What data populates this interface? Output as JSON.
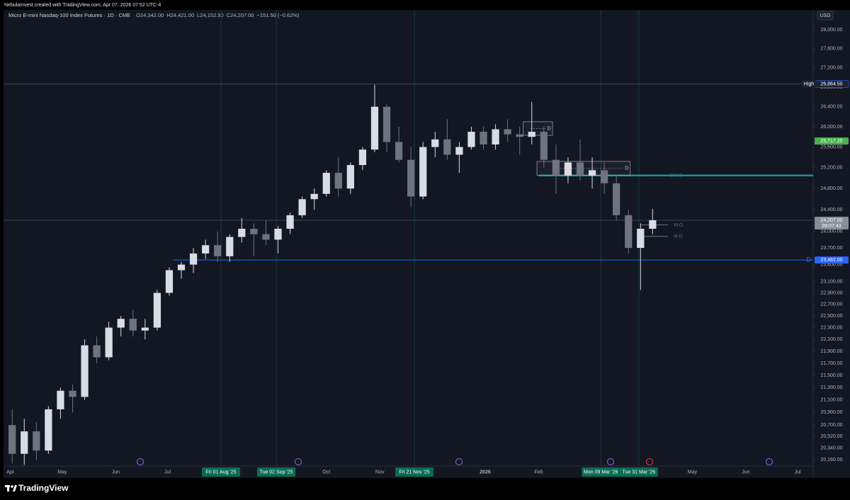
{
  "chart_data": {
    "type": "candlestick",
    "attribution": "NebulaInvest created with TradingView.com, Apr 07, 2026 07:52 UTC-4",
    "title": "Micro E-mini Nasdaq-100 Index Futures · 1D · CME",
    "legend_items": [
      "O24,342.00",
      "H24,421.00",
      "L24,152.50",
      "C24,207.00",
      "−151.50 (−0.62%)"
    ],
    "currency": "USD",
    "footer": "TradingView",
    "log_scale": true,
    "up_color": "#d9dce3",
    "down_color": "#6f737e",
    "x": [
      "2025-03-31",
      "2025-04-07",
      "2025-04-14",
      "2025-04-21",
      "2025-04-28",
      "2025-05-05",
      "2025-05-12",
      "2025-05-19",
      "2025-05-26",
      "2025-06-02",
      "2025-06-09",
      "2025-06-16",
      "2025-06-23",
      "2025-06-30",
      "2025-07-07",
      "2025-07-14",
      "2025-07-21",
      "2025-07-28",
      "2025-08-04",
      "2025-08-11",
      "2025-08-18",
      "2025-08-25",
      "2025-09-01",
      "2025-09-08",
      "2025-09-15",
      "2025-09-22",
      "2025-09-29",
      "2025-10-06",
      "2025-10-13",
      "2025-10-20",
      "2025-10-27",
      "2025-11-03",
      "2025-11-10",
      "2025-11-17",
      "2025-11-24",
      "2025-12-01",
      "2025-12-08",
      "2025-12-15",
      "2025-12-22",
      "2025-12-29",
      "2026-01-05",
      "2026-01-12",
      "2026-01-19",
      "2026-01-26",
      "2026-02-02",
      "2026-02-09",
      "2026-02-16",
      "2026-02-23",
      "2026-03-02",
      "2026-03-09",
      "2026-03-16",
      "2026-03-23",
      "2026-03-30",
      "2026-04-06"
    ],
    "open": [
      20700,
      20250,
      20600,
      20300,
      20950,
      21250,
      21150,
      22000,
      21800,
      22300,
      22450,
      22250,
      22300,
      22900,
      23300,
      23400,
      23600,
      23750,
      23550,
      23900,
      24050,
      23950,
      23850,
      24050,
      24300,
      24600,
      24700,
      25100,
      24800,
      25250,
      25550,
      26400,
      25700,
      25350,
      24650,
      25600,
      25750,
      25450,
      25600,
      25900,
      25650,
      25950,
      25850,
      25800,
      25900,
      25350,
      25050,
      25300,
      25050,
      25150,
      24900,
      24300,
      23700,
      24050
    ],
    "high": [
      20950,
      20800,
      20750,
      21000,
      21300,
      21350,
      22100,
      22150,
      22400,
      22500,
      22600,
      22450,
      22950,
      23350,
      23450,
      23700,
      23850,
      24000,
      23950,
      24250,
      24150,
      24200,
      24100,
      24350,
      24650,
      24800,
      25150,
      25400,
      25300,
      25600,
      26850,
      26450,
      26000,
      25600,
      25700,
      25900,
      26150,
      25700,
      26000,
      26000,
      26050,
      26150,
      26000,
      26500,
      26000,
      25650,
      25400,
      25750,
      25400,
      25300,
      25050,
      24400,
      24150,
      24421
    ],
    "low": [
      20100,
      20080,
      20150,
      20250,
      20800,
      20900,
      21100,
      21700,
      21750,
      22150,
      22150,
      22100,
      22250,
      22850,
      23150,
      23250,
      23500,
      23450,
      23450,
      23800,
      23550,
      23750,
      23600,
      23950,
      24250,
      24400,
      24650,
      24650,
      24700,
      25150,
      25500,
      25500,
      25300,
      24450,
      24600,
      25400,
      25350,
      25100,
      25550,
      25550,
      25550,
      25700,
      25450,
      25650,
      25200,
      24700,
      24900,
      24950,
      24800,
      24700,
      24200,
      23600,
      22950,
      23950
    ],
    "close": [
      20250,
      20600,
      20300,
      20950,
      21250,
      21150,
      22000,
      21800,
      22300,
      22450,
      22250,
      22300,
      22900,
      23300,
      23400,
      23600,
      23750,
      23550,
      23900,
      24050,
      23950,
      23850,
      24050,
      24300,
      24600,
      24700,
      25100,
      24800,
      25250,
      25550,
      26400,
      25700,
      25350,
      24650,
      25600,
      25750,
      25450,
      25600,
      25900,
      25650,
      25950,
      25850,
      25800,
      25900,
      25350,
      25050,
      25300,
      25050,
      25150,
      24900,
      24300,
      23700,
      24050,
      24207
    ],
    "xlim": [
      "2025-03-28",
      "2026-07-10"
    ],
    "xticks": [
      {
        "value": "2025-04-01",
        "label": "Apr"
      },
      {
        "value": "2025-05-01",
        "label": "May"
      },
      {
        "value": "2025-06-01",
        "label": "Jun"
      },
      {
        "value": "2025-07-01",
        "label": "Jul"
      },
      {
        "value": "2025-10-01",
        "label": "Oct"
      },
      {
        "value": "2025-11-01",
        "label": "Nov"
      },
      {
        "value": "2026-01-01",
        "label": "2026"
      },
      {
        "value": "2026-02-01",
        "label": "Feb"
      },
      {
        "value": "2026-05-01",
        "label": "May"
      },
      {
        "value": "2026-06-01",
        "label": "Jun"
      },
      {
        "value": "2026-07-01",
        "label": "Jul"
      }
    ],
    "xmarkers": [
      {
        "value": "2025-08-01",
        "label": "Fri 01 Aug '25"
      },
      {
        "value": "2025-09-02",
        "label": "Tue 02 Sep '25"
      },
      {
        "value": "2025-11-21",
        "label": "Fri 21 Nov '25"
      },
      {
        "value": "2026-03-09",
        "label": "Mon 09 Mar '26"
      },
      {
        "value": "2026-03-31",
        "label": "Tue 31 Mar '26"
      }
    ],
    "ylim": [
      20062,
      28428
    ],
    "yticks": [
      {
        "value": 28000,
        "label": "28,000.00"
      },
      {
        "value": 27600,
        "label": "27,600.00"
      },
      {
        "value": 27200,
        "label": "27,200.00"
      },
      {
        "value": 26800,
        "label": "26,800.00"
      },
      {
        "value": 26400,
        "label": "26,400.00"
      },
      {
        "value": 26000,
        "label": "26,000.00"
      },
      {
        "value": 25600,
        "label": "25,600.00"
      },
      {
        "value": 25200,
        "label": "25,200.00"
      },
      {
        "value": 24800,
        "label": "24,800.00"
      },
      {
        "value": 24400,
        "label": "24,400.00"
      },
      {
        "value": 24000,
        "label": "24,000.00"
      },
      {
        "value": 23700,
        "label": "23,700.00"
      },
      {
        "value": 23400,
        "label": "23,400.00"
      },
      {
        "value": 23100,
        "label": "23,100.00"
      },
      {
        "value": 22900,
        "label": "22,900.00"
      },
      {
        "value": 22700,
        "label": "22,700.00"
      },
      {
        "value": 22500,
        "label": "22,500.00"
      },
      {
        "value": 22300,
        "label": "22,300.00"
      },
      {
        "value": 22100,
        "label": "22,100.00"
      },
      {
        "value": 21900,
        "label": "21,900.00"
      },
      {
        "value": 21700,
        "label": "21,700.00"
      },
      {
        "value": 21500,
        "label": "21,500.00"
      },
      {
        "value": 21300,
        "label": "21,300.00"
      },
      {
        "value": 21100,
        "label": "21,100.00"
      },
      {
        "value": 20900,
        "label": "20,900.00"
      },
      {
        "value": 20700,
        "label": "20,700.00"
      },
      {
        "value": 20520,
        "label": "20,520.00"
      },
      {
        "value": 20340,
        "label": "20,340.00"
      },
      {
        "value": 20160,
        "label": "20,160.00"
      }
    ],
    "price_labels": [
      {
        "value": 26864.5,
        "label": "26,864.50",
        "tag": "High",
        "color": "#1c2233"
      },
      {
        "value": 25717.25,
        "label": "25,717.25",
        "color": "#4caf50"
      },
      {
        "value": 24207,
        "label": "24,207.00",
        "sublabel": "09:07:43",
        "color": "#8a8d96"
      },
      {
        "value": 23482,
        "label": "23,482.00",
        "color": "#2962ff"
      }
    ],
    "levels": [
      {
        "value": 26864.5,
        "color": "#3a4a5c"
      },
      {
        "value": 24207,
        "color": "#3a4454"
      },
      {
        "value": 23482,
        "label": "D",
        "color": "#2962ff",
        "from": "2025-07-04"
      },
      {
        "value": 25050,
        "label": "CW 9",
        "color": "#1e8b96",
        "from": "2026-02-01"
      },
      {
        "value": 24120,
        "label": "W.O.",
        "color": "#6f737e",
        "from": "2026-04-01",
        "to": "2026-04-17"
      },
      {
        "value": 23910,
        "label": "M.O.",
        "color": "#6f737e",
        "from": "2026-04-01",
        "to": "2026-04-17"
      }
    ],
    "zones": [
      {
        "label": "D",
        "start": "2026-01-23",
        "end": "2026-02-09",
        "top": 26100,
        "bottom": 25830
      },
      {
        "label": "D",
        "start": "2026-01-31",
        "end": "2026-03-26",
        "top": 25320,
        "bottom": 25050
      }
    ]
  }
}
